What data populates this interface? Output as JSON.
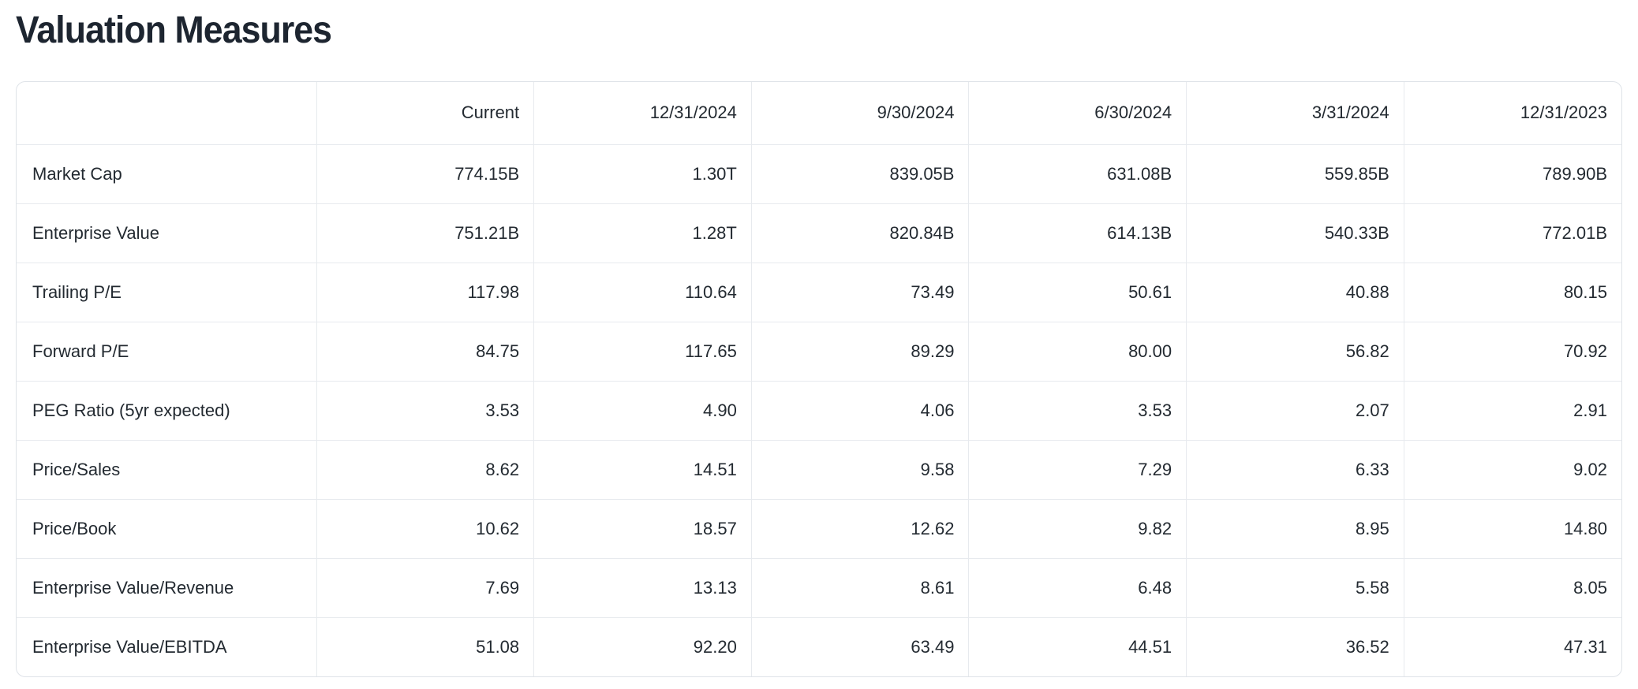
{
  "page_title": "Valuation Measures",
  "colors": {
    "text": "#232a31",
    "title": "#1d2530",
    "border_outer": "#dfe3e8",
    "border_inner": "#e7eaee",
    "background": "#ffffff"
  },
  "chart_data": {
    "type": "table",
    "title": "Valuation Measures",
    "columns": [
      "",
      "Current",
      "12/31/2024",
      "9/30/2024",
      "6/30/2024",
      "3/31/2024",
      "12/31/2023"
    ],
    "rows": [
      {
        "label": "Market Cap",
        "values": [
          "774.15B",
          "1.30T",
          "839.05B",
          "631.08B",
          "559.85B",
          "789.90B"
        ]
      },
      {
        "label": "Enterprise Value",
        "values": [
          "751.21B",
          "1.28T",
          "820.84B",
          "614.13B",
          "540.33B",
          "772.01B"
        ]
      },
      {
        "label": "Trailing P/E",
        "values": [
          "117.98",
          "110.64",
          "73.49",
          "50.61",
          "40.88",
          "80.15"
        ]
      },
      {
        "label": "Forward P/E",
        "values": [
          "84.75",
          "117.65",
          "89.29",
          "80.00",
          "56.82",
          "70.92"
        ]
      },
      {
        "label": "PEG Ratio (5yr expected)",
        "values": [
          "3.53",
          "4.90",
          "4.06",
          "3.53",
          "2.07",
          "2.91"
        ]
      },
      {
        "label": "Price/Sales",
        "values": [
          "8.62",
          "14.51",
          "9.58",
          "7.29",
          "6.33",
          "9.02"
        ]
      },
      {
        "label": "Price/Book",
        "values": [
          "10.62",
          "18.57",
          "12.62",
          "9.82",
          "8.95",
          "14.80"
        ]
      },
      {
        "label": "Enterprise Value/Revenue",
        "values": [
          "7.69",
          "13.13",
          "8.61",
          "6.48",
          "5.58",
          "8.05"
        ]
      },
      {
        "label": "Enterprise Value/EBITDA",
        "values": [
          "51.08",
          "92.20",
          "63.49",
          "44.51",
          "36.52",
          "47.31"
        ]
      }
    ]
  }
}
